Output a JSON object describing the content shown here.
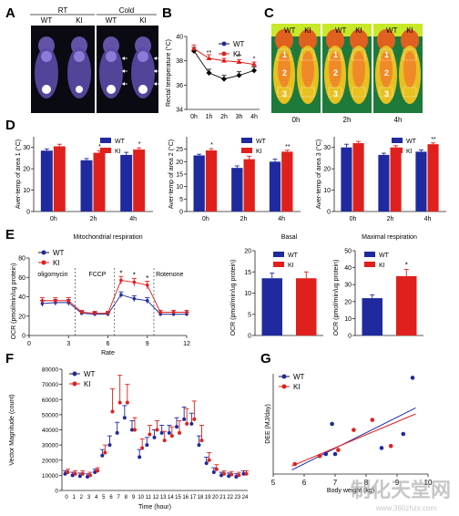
{
  "figure": {
    "panel_letters": [
      "A",
      "B",
      "C",
      "D",
      "E",
      "F",
      "G"
    ],
    "legend": {
      "wt": "WT",
      "ki": "KI"
    },
    "colors": {
      "wt": "#1f2a9e",
      "ki": "#e0201c",
      "wt_line": "#1a1a1a",
      "ki_line": "#e0201c",
      "axis": "#222222"
    },
    "watermark": {
      "text": "制化天堂网",
      "url": "www.360zhzx.com"
    }
  },
  "panel_a": {
    "groups": [
      {
        "label": "RT",
        "sub": [
          "WT",
          "KI"
        ]
      },
      {
        "label": "Cold",
        "sub": [
          "WT",
          "KI"
        ]
      }
    ]
  },
  "panel_c": {
    "sub": [
      "WT",
      "KI"
    ],
    "times": [
      "0h",
      "2h",
      "4h"
    ],
    "area_marks": [
      "1",
      "2",
      "3"
    ]
  },
  "chart_data": [
    {
      "id": "B",
      "type": "line",
      "ylabel": "Rectal temperature (°C)",
      "x": [
        "0h",
        "1h",
        "2h",
        "3h",
        "4h"
      ],
      "ylim": [
        34,
        40
      ],
      "yticks": [
        34,
        36,
        38,
        40
      ],
      "series": [
        {
          "name": "WT",
          "values": [
            38.8,
            37.0,
            36.5,
            36.8,
            37.2
          ],
          "err": [
            0.3,
            0.3,
            0.3,
            0.3,
            0.3
          ]
        },
        {
          "name": "KI",
          "values": [
            39.0,
            38.2,
            38.0,
            37.9,
            37.7
          ],
          "err": [
            0.3,
            0.3,
            0.2,
            0.2,
            0.2
          ]
        }
      ],
      "annotations": [
        "",
        "**",
        "**",
        "**",
        "*"
      ]
    },
    {
      "id": "D1",
      "type": "bar",
      "ylabel": "Aver-temp of area 1 (°C)",
      "categories": [
        "0h",
        "2h",
        "4h"
      ],
      "ylim": [
        0,
        35
      ],
      "yticks": [
        0,
        10,
        20,
        30
      ],
      "series": [
        {
          "name": "WT",
          "values": [
            28.5,
            24.0,
            26.5
          ],
          "err": [
            0.8,
            0.8,
            1.2
          ]
        },
        {
          "name": "KI",
          "values": [
            30.5,
            27.5,
            29.0
          ],
          "err": [
            1.0,
            1.0,
            0.8
          ]
        }
      ],
      "annotations": [
        "",
        "*",
        "*"
      ]
    },
    {
      "id": "D2",
      "type": "bar",
      "ylabel": "Aver-temp of area 2 (°C)",
      "categories": [
        "0h",
        "2h",
        "4h"
      ],
      "ylim": [
        0,
        30
      ],
      "yticks": [
        0,
        5,
        10,
        15,
        20,
        25
      ],
      "series": [
        {
          "name": "WT",
          "values": [
            22.5,
            17.5,
            20.0
          ],
          "err": [
            0.5,
            0.8,
            1.0
          ]
        },
        {
          "name": "KI",
          "values": [
            24.5,
            21.0,
            24.0
          ],
          "err": [
            0.7,
            1.2,
            0.6
          ]
        }
      ],
      "annotations": [
        "*",
        "*",
        "**"
      ]
    },
    {
      "id": "D3",
      "type": "bar",
      "ylabel": "Aver-temp of area 3 (°C)",
      "categories": [
        "0h",
        "2h",
        "4h"
      ],
      "ylim": [
        0,
        35
      ],
      "yticks": [
        0,
        10,
        20,
        30
      ],
      "series": [
        {
          "name": "WT",
          "values": [
            30.0,
            26.5,
            28.0
          ],
          "err": [
            1.5,
            0.8,
            0.8
          ]
        },
        {
          "name": "KI",
          "values": [
            32.0,
            30.0,
            31.5
          ],
          "err": [
            0.8,
            0.8,
            0.6
          ]
        }
      ],
      "annotations": [
        "",
        "**",
        "**"
      ]
    },
    {
      "id": "E1",
      "type": "line",
      "title": "Mitochondrial respiration",
      "ylabel": "OCR (pmol/min/ug protein)",
      "xlabel": "Rate",
      "xlim": [
        0,
        12
      ],
      "xticks": [
        0,
        3,
        6,
        9,
        12
      ],
      "ylim": [
        0,
        80
      ],
      "yticks": [
        0,
        20,
        40,
        60,
        80
      ],
      "phase_labels": [
        "oligomycin",
        "FCCP",
        "Rotenone"
      ],
      "phase_lines": [
        3.5,
        6.5,
        9.5
      ],
      "series": [
        {
          "name": "WT",
          "x": [
            1,
            2,
            3,
            4,
            5,
            6,
            7,
            8,
            9,
            10,
            11,
            12
          ],
          "values": [
            33,
            34,
            34,
            23,
            22,
            22,
            42,
            38,
            36,
            22,
            22,
            22
          ],
          "err": [
            3,
            3,
            3,
            2,
            2,
            2,
            3,
            3,
            3,
            2,
            2,
            2
          ]
        },
        {
          "name": "KI",
          "x": [
            1,
            2,
            3,
            4,
            5,
            6,
            7,
            8,
            9,
            10,
            11,
            12
          ],
          "values": [
            36,
            36,
            36,
            24,
            23,
            23,
            57,
            55,
            52,
            24,
            24,
            24
          ],
          "err": [
            3,
            3,
            3,
            2,
            2,
            2,
            4,
            4,
            4,
            2,
            2,
            2
          ]
        }
      ],
      "annotations": [
        {
          "x": 7,
          "t": "*"
        },
        {
          "x": 8,
          "t": "*"
        },
        {
          "x": 9,
          "t": "*"
        }
      ]
    },
    {
      "id": "E2",
      "type": "bar",
      "title": "Basal",
      "ylabel": "OCR (pmol/min/ug protein)",
      "ylim": [
        0,
        20
      ],
      "yticks": [
        0,
        5,
        10,
        15,
        20
      ],
      "series": [
        {
          "name": "WT",
          "values": [
            13.5
          ],
          "err": [
            1.2
          ]
        },
        {
          "name": "KI",
          "values": [
            13.5
          ],
          "err": [
            1.5
          ]
        }
      ]
    },
    {
      "id": "E3",
      "type": "bar",
      "title": "Maximal respiration",
      "ylabel": "OCR (pmol/min/ug protein)",
      "ylim": [
        0,
        50
      ],
      "yticks": [
        0,
        10,
        20,
        30,
        40,
        50
      ],
      "series": [
        {
          "name": "WT",
          "values": [
            22
          ],
          "err": [
            2
          ]
        },
        {
          "name": "KI",
          "values": [
            35
          ],
          "err": [
            4
          ]
        }
      ],
      "annotations": [
        "*"
      ]
    },
    {
      "id": "F",
      "type": "line",
      "ylabel": "Vector Magnitude (count)",
      "xlabel": "Time (hour)",
      "x": [
        0,
        1,
        2,
        3,
        4,
        5,
        6,
        7,
        8,
        9,
        10,
        11,
        12,
        13,
        14,
        15,
        16,
        17,
        18,
        19,
        20,
        21,
        22,
        23,
        24
      ],
      "ylim": [
        0,
        80000
      ],
      "yticks": [
        0,
        10000,
        20000,
        30000,
        40000,
        50000,
        60000,
        70000,
        80000
      ],
      "series": [
        {
          "name": "WT",
          "values": [
            11000,
            10000,
            9500,
            9000,
            12000,
            23000,
            30000,
            38000,
            48000,
            40000,
            22000,
            30000,
            35000,
            38000,
            38000,
            42000,
            47000,
            44000,
            30000,
            18000,
            12000,
            10000,
            9500,
            9000,
            11000
          ],
          "err": [
            2000,
            2000,
            2000,
            2000,
            2000,
            4000,
            6000,
            7000,
            8000,
            6000,
            5000,
            5000,
            5000,
            5000,
            5000,
            6000,
            8000,
            7000,
            6000,
            4000,
            3000,
            2000,
            2000,
            2000,
            2000
          ]
        },
        {
          "name": "KI",
          "values": [
            12000,
            11000,
            11000,
            10000,
            13000,
            25000,
            52000,
            58000,
            58000,
            40000,
            28000,
            37000,
            40000,
            33000,
            36000,
            38000,
            44000,
            47000,
            33000,
            20000,
            14000,
            11000,
            10500,
            10000,
            11000
          ],
          "err": [
            2000,
            2000,
            2000,
            2000,
            2000,
            5000,
            15000,
            18000,
            12000,
            8000,
            6000,
            6000,
            6000,
            6000,
            6000,
            8000,
            10000,
            12000,
            10000,
            5000,
            3000,
            2000,
            2000,
            2000,
            2000
          ]
        }
      ]
    },
    {
      "id": "G",
      "type": "scatter",
      "ylabel": "DEE (MJ/day)",
      "xlabel": "Body weight (kg)",
      "xlim": [
        5,
        10
      ],
      "xticks": [
        5,
        6,
        7,
        8,
        9,
        10
      ],
      "ylim": [
        2,
        7
      ],
      "series": [
        {
          "name": "WT",
          "points": [
            [
              6.7,
              3.0
            ],
            [
              6.9,
              4.5
            ],
            [
              7.0,
              3.0
            ],
            [
              8.5,
              3.3
            ],
            [
              9.2,
              4.0
            ],
            [
              9.5,
              6.8
            ]
          ]
        },
        {
          "name": "KI",
          "points": [
            [
              5.7,
              2.5
            ],
            [
              6.5,
              2.9
            ],
            [
              7.1,
              3.2
            ],
            [
              7.6,
              4.2
            ],
            [
              8.2,
              4.7
            ],
            [
              8.8,
              3.4
            ]
          ]
        }
      ],
      "fits": [
        {
          "name": "WT",
          "from": [
            5.6,
            2.2
          ],
          "to": [
            9.6,
            5.3
          ]
        },
        {
          "name": "KI",
          "from": [
            5.6,
            2.4
          ],
          "to": [
            9.6,
            5.0
          ]
        }
      ]
    }
  ]
}
